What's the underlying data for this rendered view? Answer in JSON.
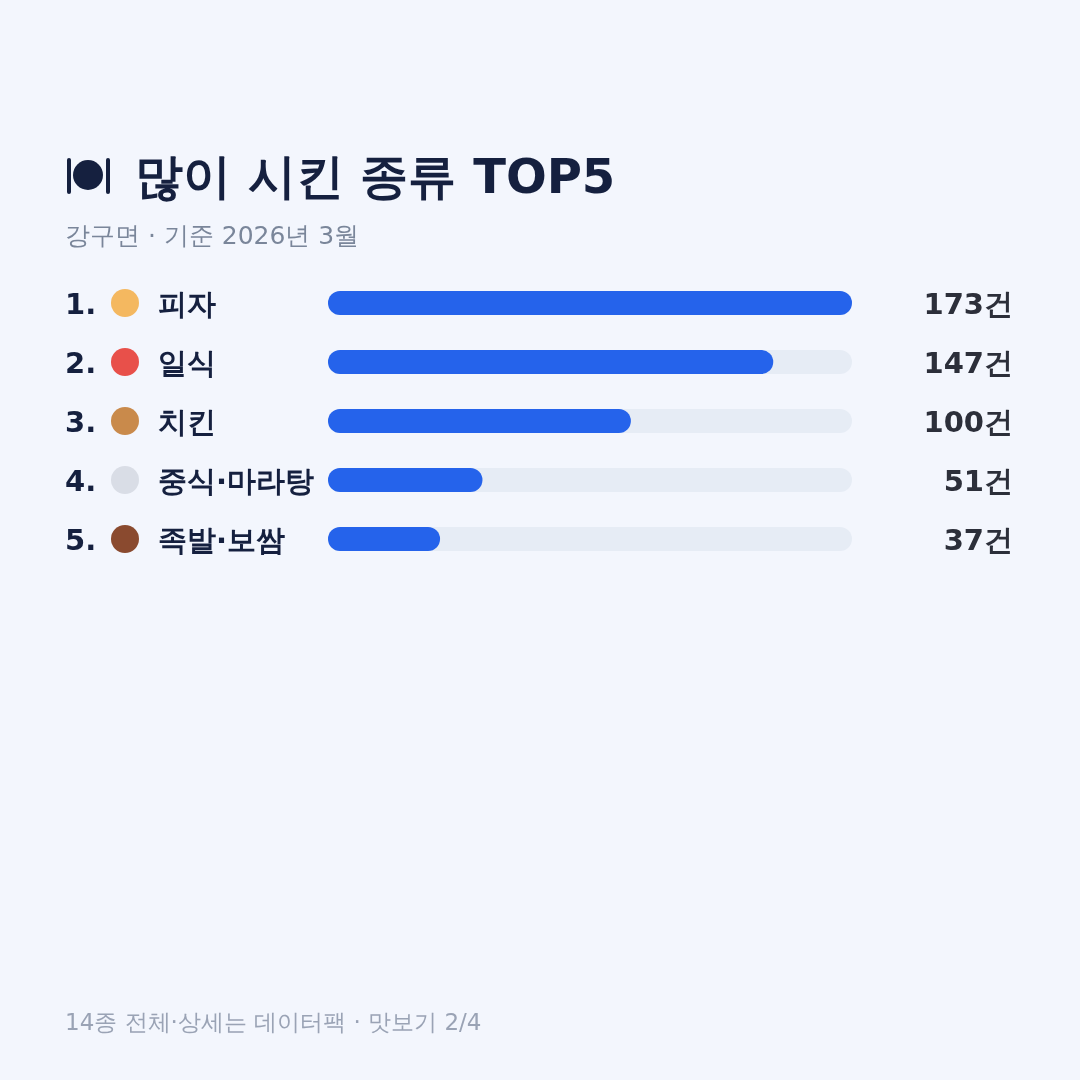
{
  "chart_data": {
    "type": "bar",
    "orientation": "horizontal",
    "title": "많이 시킨 종류 TOP5",
    "subtitle": "강구면 · 기준 2026년 3월",
    "categories": [
      "1. 피자",
      "2. 일식",
      "3. 치킨",
      "4. 중식·마라탕",
      "5. 족발·보쌈"
    ],
    "values": [
      173,
      147,
      100,
      51,
      37
    ],
    "value_labels": [
      "173건",
      "147건",
      "100건",
      "51건",
      "37건"
    ],
    "color": "#2563eb",
    "annotations": [
      "14종 전체·상세는 데이터팩 · 맛보기 2/4"
    ]
  }
}
